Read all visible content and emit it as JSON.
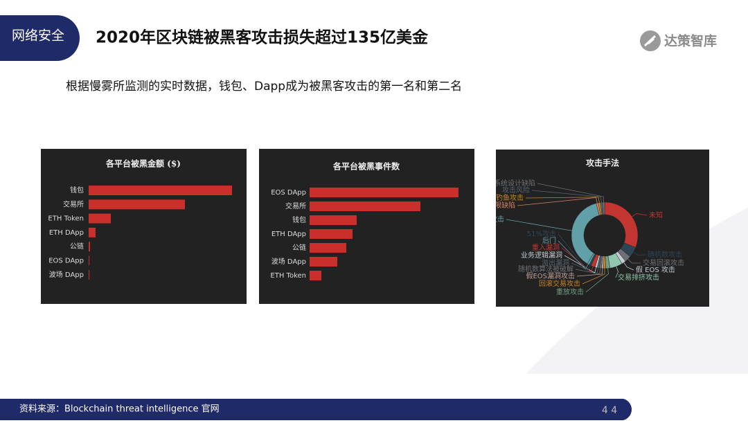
{
  "header": {
    "tag": "网络安全",
    "title": "2020年区块链被黑客攻击损失超过135亿美金",
    "logo": "达策智库"
  },
  "subtitle": "根据慢雾所监测的实时数据，钱包、Dapp成为被黑客攻击的第一名和第二名",
  "chart_data": [
    {
      "type": "bar",
      "orientation": "horizontal",
      "title": "各平台被黑金额 ($)",
      "categories": [
        "钱包",
        "交易所",
        "ETH Token",
        "ETH DApp",
        "公链",
        "EOS DApp",
        "波场 DApp"
      ],
      "values": [
        207,
        139,
        32,
        10,
        2,
        1,
        1
      ],
      "color": "#c9302c",
      "xlim": [
        0,
        212
      ]
    },
    {
      "type": "bar",
      "orientation": "horizontal",
      "title": "各平台被黑事件数",
      "categories": [
        "EOS DApp",
        "交易所",
        "钱包",
        "ETH DApp",
        "公链",
        "波场 DApp",
        "ETH Token"
      ],
      "values": [
        215,
        160,
        68,
        62,
        53,
        40,
        17
      ],
      "color": "#c9302c",
      "xlim": [
        0,
        220
      ]
    },
    {
      "type": "pie",
      "donut": true,
      "title": "攻击手法",
      "categories": [
        "未知",
        "随机数攻击",
        "交易回滚攻击",
        "假 EOS 攻击",
        "交易排挤攻击",
        "重放攻击",
        "回滚交易攻击",
        "假EOS漏洞攻击",
        "随机数算法被破解",
        "溢出漏洞",
        "业务逻辑漏洞",
        "重入漏洞",
        "51%攻击",
        "后门",
        "漏洞攻击",
        "权限缺陷",
        "钓鱼攻击",
        "攻击风险",
        "系统设计缺陷"
      ],
      "values": [
        30,
        5,
        3,
        2,
        6,
        2,
        1,
        1,
        1,
        1,
        1,
        2,
        1,
        1,
        36,
        1,
        1,
        1,
        1
      ],
      "colors": [
        "#c23531",
        "#2f4554",
        "#6e7074",
        "#c4ccd3",
        "#91c7ae",
        "#749f83",
        "#ca8622",
        "#bda29a",
        "#6e7074",
        "#546570",
        "#c4ccd3",
        "#c23531",
        "#2f4554",
        "#61a0a8",
        "#61a0a8",
        "#d48265",
        "#ca8622",
        "#546570",
        "#6e7074"
      ]
    }
  ],
  "footer": {
    "source": "资料来源：Blockchain threat intelligence 官网",
    "page": "4 4"
  }
}
